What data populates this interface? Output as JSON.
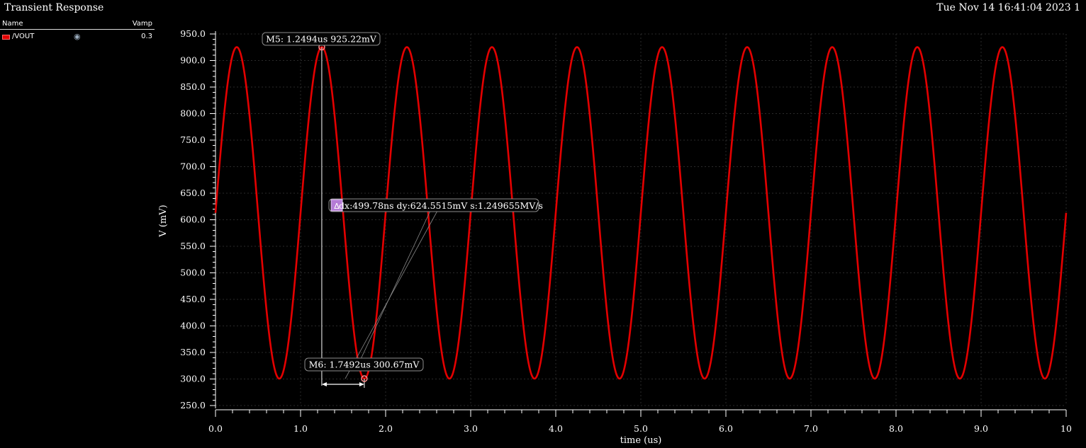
{
  "window": {
    "title": "Transient Response",
    "timestamp": "Tue Nov 14 16:41:04 2023   1"
  },
  "legend": {
    "name_header": "Name",
    "value_header": "Vamp",
    "items": [
      {
        "name": "/VOUT",
        "value": "0.3",
        "color": "#e30000",
        "visibility_icon": "eye-icon"
      }
    ]
  },
  "markers": {
    "m5": {
      "label": "M5: 1.2494us 925.22mV",
      "x": 1.2494,
      "y": 925.22
    },
    "m6": {
      "label": "M6: 1.7492us 300.67mV",
      "x": 1.7492,
      "y": 300.67
    },
    "delta": {
      "symbol": "Δ",
      "label": "dx:499.78ns dy:624.5515mV s:1.249655MV/s"
    }
  },
  "chart_data": {
    "type": "line",
    "xlabel": "time (us)",
    "ylabel": "V (mV)",
    "xlim": [
      0,
      10
    ],
    "ylim": [
      250,
      950
    ],
    "xticks": [
      "0.0",
      "1.0",
      "2.0",
      "3.0",
      "4.0",
      "5.0",
      "6.0",
      "7.0",
      "8.0",
      "9.0",
      "10"
    ],
    "yticks": [
      "250.0",
      "300.0",
      "350.0",
      "400.0",
      "450.0",
      "500.0",
      "550.0",
      "600.0",
      "650.0",
      "700.0",
      "750.0",
      "800.0",
      "850.0",
      "900.0",
      "950.0"
    ],
    "grid": true,
    "series": [
      {
        "name": "/VOUT",
        "color": "#e30000",
        "signal": {
          "offset_mV": 612.945,
          "amplitude_mV": 312.275,
          "frequency_MHz": 1.0,
          "start_us": 0,
          "end_us": 10
        },
        "x": [
          0,
          0.25,
          0.5,
          0.75,
          1.0,
          1.25,
          1.5,
          1.75,
          2.0,
          2.25,
          2.5,
          2.75,
          3.0,
          3.25,
          3.5,
          3.75,
          4.0,
          4.25,
          4.5,
          4.75,
          5.0,
          5.25,
          5.5,
          5.75,
          6.0,
          6.25,
          6.5,
          6.75,
          7.0,
          7.25,
          7.5,
          7.75,
          8.0,
          8.25,
          8.5,
          8.75,
          9.0,
          9.25,
          9.5,
          9.75,
          10.0
        ],
        "y": [
          600,
          925,
          600,
          301,
          600,
          925,
          600,
          301,
          600,
          925,
          600,
          301,
          600,
          925,
          600,
          301,
          600,
          925,
          600,
          301,
          600,
          925,
          600,
          301,
          600,
          925,
          600,
          301,
          600,
          925,
          600,
          301,
          600,
          925,
          600,
          301,
          600,
          925,
          600,
          301,
          600
        ]
      }
    ]
  }
}
